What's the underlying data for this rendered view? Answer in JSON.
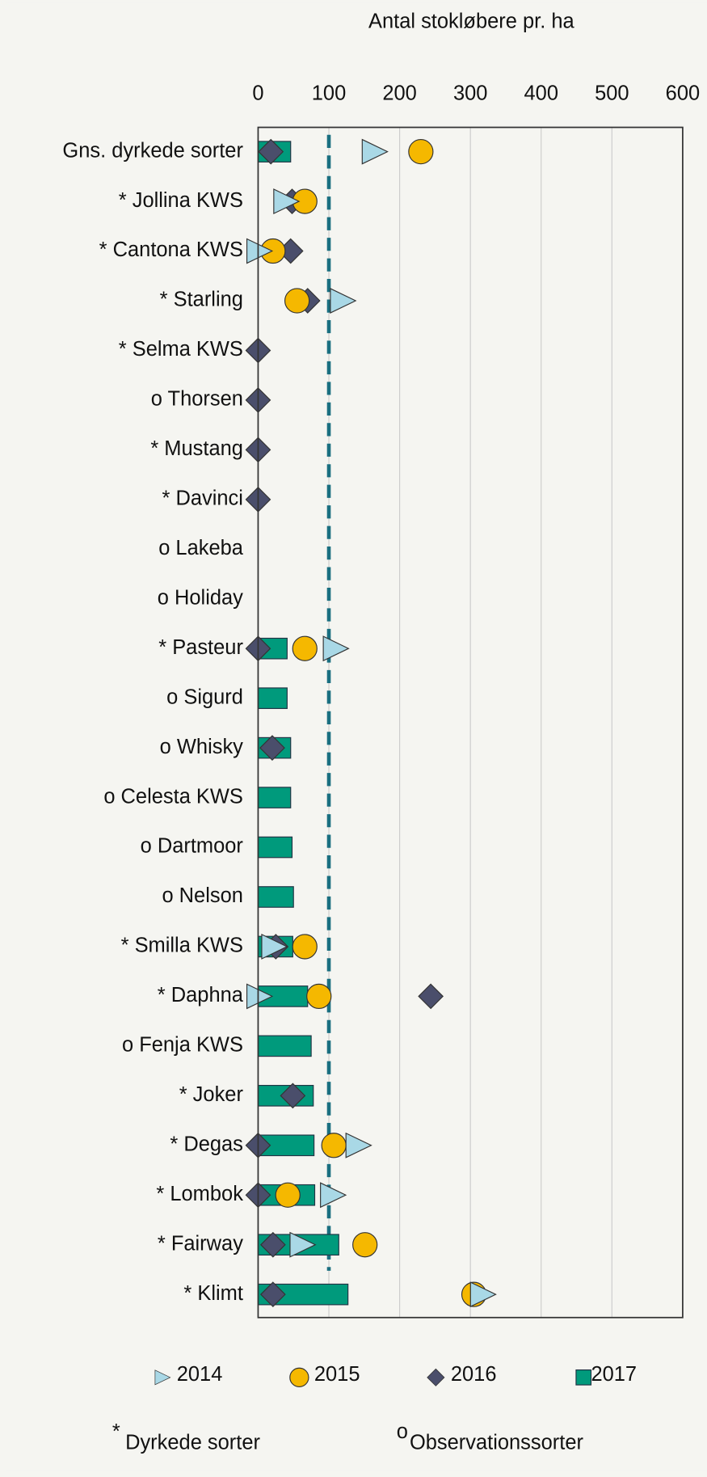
{
  "chart_data": {
    "type": "dot",
    "title": "Antal stokløbere pr. ha",
    "categories": [
      "Gns. dyrkede sorter",
      "* Jollina KWS",
      "* Cantona KWS",
      "* Starling",
      "* Selma KWS",
      "o Thorsen",
      "* Mustang",
      "* Davinci",
      "o Lakeba",
      "o Holiday",
      "* Pasteur",
      "o Sigurd",
      "o Whisky",
      "o Celesta KWS",
      "o Dartmoor",
      "o Nelson",
      "* Smilla KWS",
      "* Daphna",
      "o Fenja KWS",
      "* Joker",
      "* Degas",
      "* Lombok",
      "* Fairway",
      "* Klimt"
    ],
    "series": [
      {
        "name": "2017",
        "marker": "bar",
        "color": "#009a7c",
        "values": [
          46,
          null,
          null,
          null,
          null,
          null,
          null,
          null,
          null,
          null,
          41,
          41,
          46,
          46,
          48,
          50,
          49,
          70,
          75,
          78,
          79,
          80,
          114,
          127
        ]
      },
      {
        "name": "2016",
        "marker": "diamond",
        "color": "#4a4e6b",
        "values": [
          18,
          48,
          46,
          70,
          0,
          0,
          0,
          0,
          null,
          null,
          0,
          null,
          20,
          null,
          null,
          null,
          25,
          244,
          null,
          49,
          0,
          0,
          21,
          21
        ]
      },
      {
        "name": "2015",
        "marker": "circle",
        "color": "#f5b800",
        "values": [
          230,
          66,
          21,
          55,
          null,
          null,
          null,
          null,
          null,
          null,
          66,
          null,
          null,
          null,
          null,
          null,
          66,
          86,
          null,
          null,
          107,
          42,
          151,
          305
        ]
      },
      {
        "name": "2014",
        "marker": "triangle",
        "color": "#a9d8e6",
        "values": [
          163,
          38,
          0,
          118,
          null,
          null,
          null,
          null,
          null,
          null,
          108,
          null,
          null,
          null,
          null,
          null,
          21,
          0,
          null,
          null,
          140,
          104,
          61,
          316
        ]
      }
    ],
    "legend_order": [
      3,
      2,
      1,
      0
    ],
    "xlim": [
      0,
      600
    ],
    "xticks": [
      0,
      100,
      200,
      300,
      400,
      500,
      600
    ],
    "grid": true,
    "reference_line": {
      "value": 100,
      "color": "#1a6f80"
    },
    "notes": [
      {
        "symbol": "*",
        "text": "Dyrkede sorter"
      },
      {
        "symbol": "o",
        "text": "Observationssorter"
      }
    ]
  }
}
